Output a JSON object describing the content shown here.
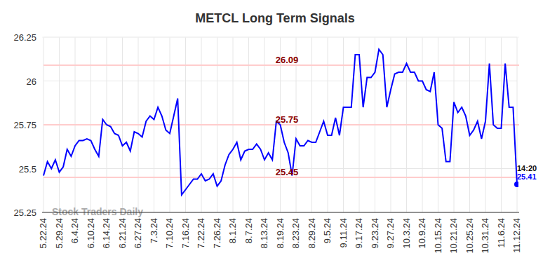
{
  "chart_data": {
    "type": "line",
    "title": "METCL Long Term Signals",
    "watermark": "Stock Traders Daily",
    "categories": [
      "5.22.24",
      null,
      null,
      null,
      "5.29.24",
      null,
      null,
      null,
      "6.4.24",
      null,
      null,
      null,
      "6.10.24",
      null,
      null,
      null,
      "6.14.24",
      null,
      null,
      null,
      "6.21.24",
      null,
      null,
      null,
      "6.27.24",
      null,
      null,
      null,
      "7.3.24",
      null,
      null,
      null,
      "7.10.24",
      null,
      null,
      null,
      "7.16.24",
      null,
      null,
      null,
      "7.22.24",
      null,
      null,
      null,
      "7.26.24",
      null,
      null,
      null,
      "8.1.24",
      null,
      null,
      null,
      "8.7.24",
      null,
      null,
      null,
      "8.13.24",
      null,
      null,
      null,
      "8.19.24",
      null,
      null,
      null,
      "8.23.24",
      null,
      null,
      null,
      "8.29.24",
      null,
      null,
      null,
      "9.5.24",
      null,
      null,
      null,
      "9.11.24",
      null,
      null,
      null,
      "9.17.24",
      null,
      null,
      null,
      "9.23.24",
      null,
      null,
      null,
      "9.27.24",
      null,
      null,
      null,
      "10.3.24",
      null,
      null,
      null,
      "10.9.24",
      null,
      null,
      null,
      "10.15.24",
      null,
      null,
      null,
      "10.21.24",
      null,
      null,
      null,
      "10.25.24",
      null,
      null,
      null,
      "10.31.24",
      null,
      null,
      null,
      "11.6.24",
      null,
      null,
      null,
      "11.12.24"
    ],
    "values": [
      25.46,
      25.54,
      25.5,
      25.55,
      25.48,
      25.51,
      25.61,
      25.57,
      25.63,
      25.66,
      25.66,
      25.67,
      25.66,
      25.61,
      25.57,
      25.78,
      25.75,
      25.74,
      25.7,
      25.69,
      25.63,
      25.65,
      25.6,
      25.71,
      25.7,
      25.68,
      25.77,
      25.8,
      25.78,
      25.85,
      25.8,
      25.72,
      25.7,
      25.8,
      25.9,
      25.35,
      25.38,
      25.41,
      25.44,
      25.44,
      25.47,
      25.43,
      25.44,
      25.47,
      25.4,
      25.43,
      25.52,
      25.58,
      25.61,
      25.65,
      25.55,
      25.6,
      25.61,
      25.61,
      25.64,
      25.61,
      25.55,
      25.59,
      25.55,
      25.77,
      25.75,
      25.65,
      25.59,
      25.46,
      25.67,
      25.63,
      25.63,
      25.66,
      25.65,
      25.65,
      25.71,
      25.77,
      25.69,
      25.69,
      25.79,
      25.69,
      25.85,
      25.85,
      25.85,
      26.15,
      26.15,
      25.85,
      26.02,
      26.02,
      26.05,
      26.18,
      26.15,
      25.85,
      25.95,
      26.04,
      26.05,
      26.05,
      26.1,
      26.05,
      26.05,
      26.0,
      26.0,
      25.95,
      25.94,
      26.05,
      25.75,
      25.73,
      25.54,
      25.54,
      25.88,
      25.82,
      25.85,
      25.8,
      25.69,
      25.72,
      25.77,
      25.67,
      25.77,
      26.1,
      25.75,
      25.73,
      25.73,
      26.1,
      25.85,
      25.85,
      25.41
    ],
    "color": "#0000ff",
    "ylim": [
      25.25,
      26.25
    ],
    "yticks": [
      25.25,
      25.5,
      25.75,
      26,
      26.25
    ],
    "grid": true,
    "reference_lines": [
      {
        "value": 26.09,
        "label": "26.09"
      },
      {
        "value": 25.75,
        "label": "25.75"
      },
      {
        "value": 25.45,
        "label": "25.45"
      }
    ],
    "last_point": {
      "time": "14:20",
      "value_label": "25.41"
    }
  }
}
